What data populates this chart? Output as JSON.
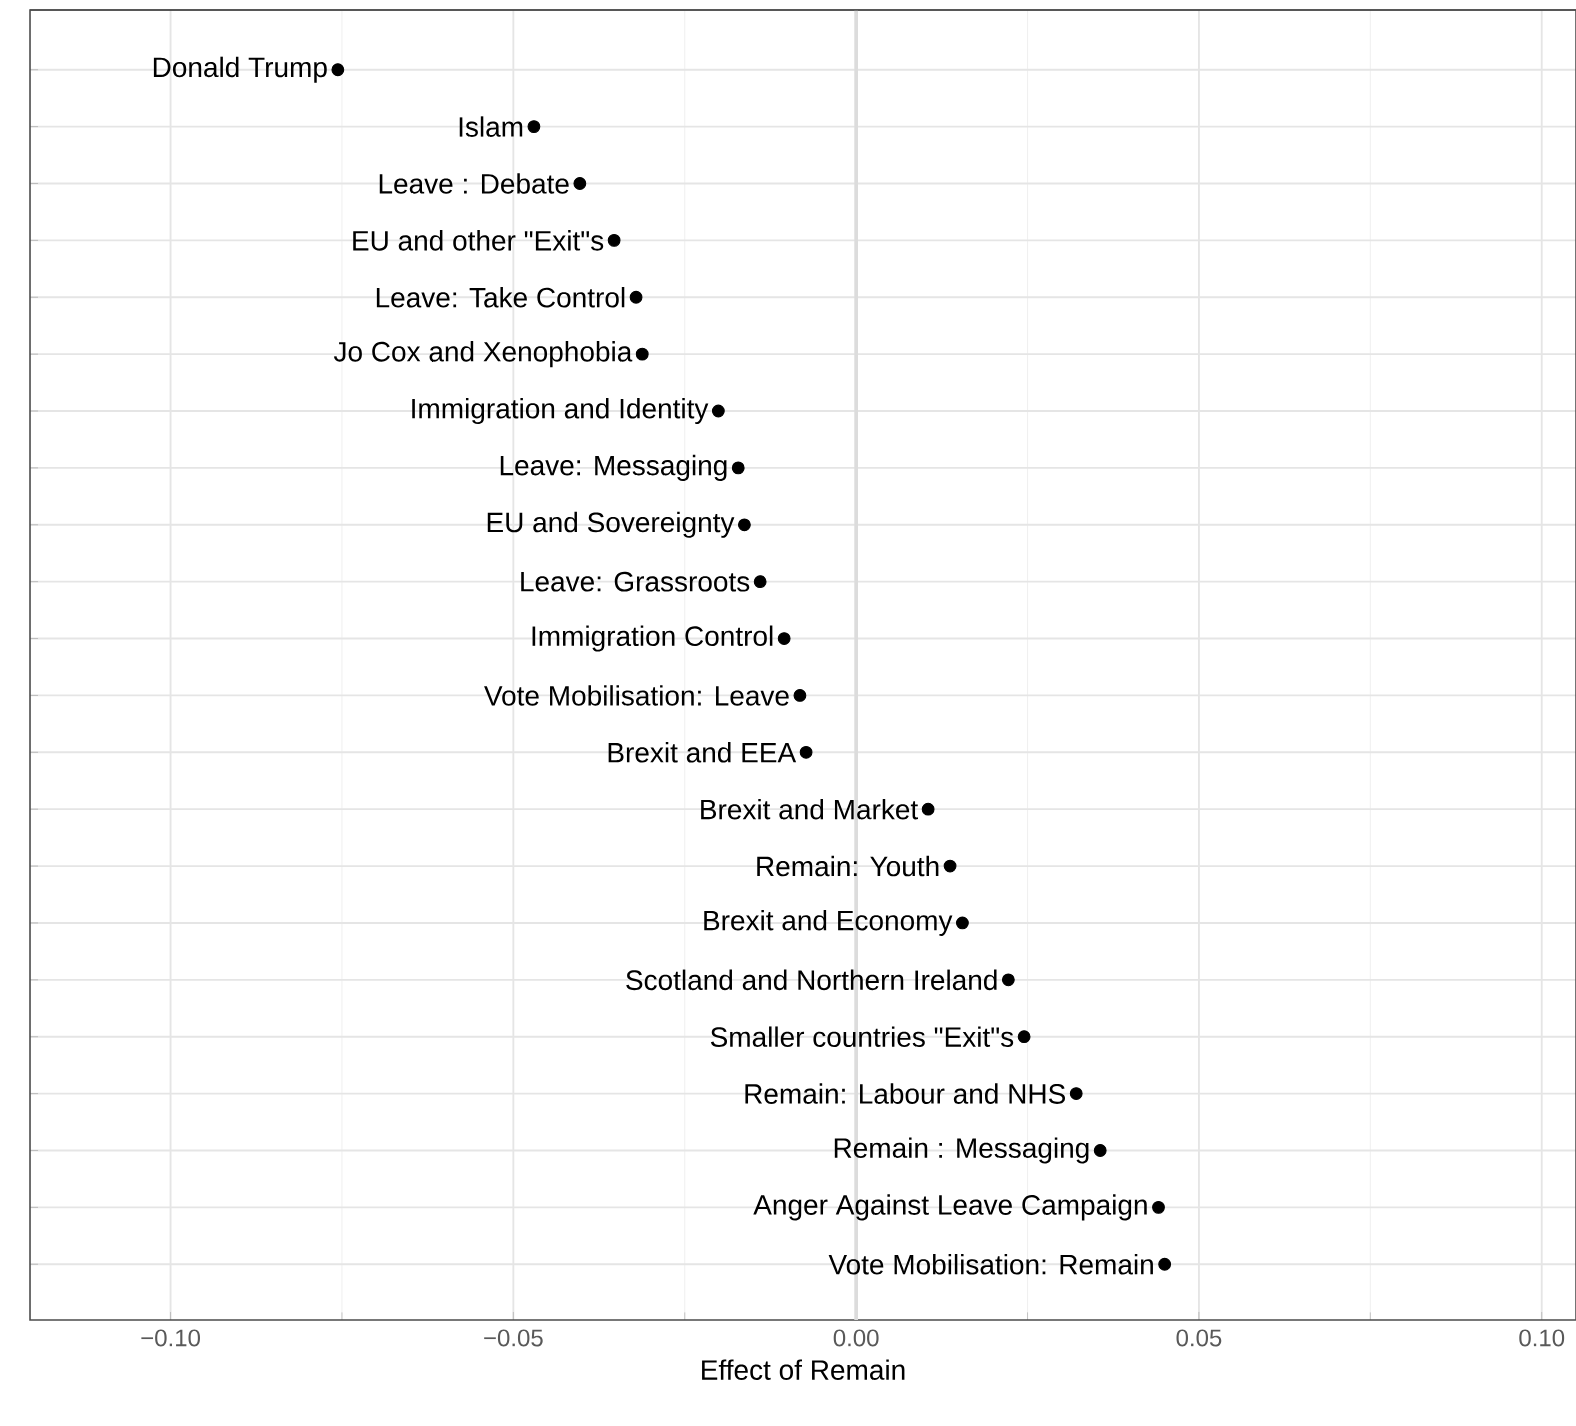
{
  "chart_data": {
    "type": "scatter",
    "orientation": "horizontal",
    "xlabel": "Effect of Remain",
    "categories": [
      "Donald Trump",
      "Islam",
      "Leave :  Debate",
      "EU and other \"Exit\"s",
      "Leave:  Take Control",
      "Jo Cox and Xenophobia",
      "Immigration and Identity",
      "Leave:  Messaging",
      "EU and Sovereignty",
      "Leave:  Grassroots",
      "Immigration Control",
      "Vote Mobilisation:  Leave",
      "Brexit and EEA",
      "Brexit and Market",
      "Remain:  Youth",
      "Brexit and Economy",
      "Scotland and Northern Ireland",
      "Smaller countries \"Exit\"s",
      "Remain:  Labour and NHS",
      "Remain :  Messaging",
      "Anger Against Leave Campaign",
      "Vote Mobilisation:  Remain"
    ],
    "values": [
      -0.0756,
      -0.047,
      -0.0403,
      -0.0353,
      -0.0321,
      -0.0312,
      -0.0201,
      -0.0172,
      -0.0163,
      -0.014,
      -0.0105,
      -0.0082,
      -0.0073,
      0.0105,
      0.0137,
      0.0155,
      0.0222,
      0.0245,
      0.0321,
      0.0356,
      0.0441,
      0.045
    ],
    "color": "#000000",
    "grid": true,
    "tick_labels": "x",
    "xlim": [
      -0.1205,
      0.105
    ],
    "xticks": [
      {
        "value": -0.1,
        "label": "−0.10"
      },
      {
        "value": -0.05,
        "label": "−0.05"
      },
      {
        "value": 0,
        "label": "0.00"
      },
      {
        "value": 0.05,
        "label": "0.05"
      },
      {
        "value": 0.1,
        "label": "0.10"
      }
    ],
    "ref_lines": [
      {
        "axis": "x",
        "value": 0,
        "color": "#dcdcdc"
      }
    ]
  }
}
